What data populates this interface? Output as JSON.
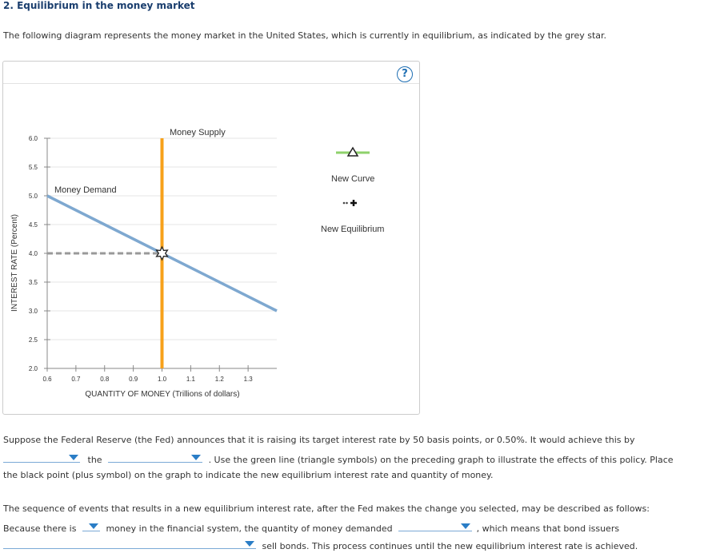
{
  "title": "2. Equilibrium in the money market",
  "intro": "The following diagram represents the money market in the United States, which is currently in equilibrium, as indicated by the grey star.",
  "help_label": "?",
  "chart": {
    "supply_label": "Money Supply",
    "demand_label": "Money Demand",
    "ylabel": "INTEREST RATE (Percent)",
    "xlabel": "QUANTITY OF MONEY (Trillions of dollars)",
    "yticks": [
      "6.0",
      "5.5",
      "5.0",
      "4.5",
      "4.0",
      "3.5",
      "3.0",
      "2.5",
      "2.0"
    ],
    "xticks": [
      "0.6",
      "0.7",
      "0.8",
      "0.9",
      "1.0",
      "1.1",
      "1.2",
      "1.3"
    ]
  },
  "chart_data": {
    "type": "line",
    "title": "",
    "xlabel": "QUANTITY OF MONEY (Trillions of dollars)",
    "ylabel": "INTEREST RATE (Percent)",
    "xlim": [
      0.6,
      1.4
    ],
    "ylim": [
      2.0,
      6.0
    ],
    "series": [
      {
        "name": "Money Supply",
        "color": "#f7a11a",
        "x": [
          1.0,
          1.0
        ],
        "y": [
          2.0,
          6.0
        ]
      },
      {
        "name": "Money Demand",
        "color": "#7ea8d0",
        "x": [
          0.6,
          1.4
        ],
        "y": [
          5.0,
          3.0
        ]
      }
    ],
    "equilibrium": {
      "x": 1.0,
      "y": 4.0,
      "marker": "grey star"
    }
  },
  "legend": {
    "new_curve": "New Curve",
    "new_equilibrium": "New Equilibrium"
  },
  "q1": {
    "line1_a": "Suppose the Federal Reserve (the Fed) announces that it is raising its target interest rate by 50 basis points, or 0.50%. It would achieve this by",
    "line2_the": "the",
    "line2_rest": ". Use the green line (triangle symbols) on the preceding graph to illustrate the effects of this policy. Place",
    "line3": "the black point (plus symbol) on the graph to indicate the new equilibrium interest rate and quantity of money."
  },
  "q2": {
    "line1": "The sequence of events that results in a new equilibrium interest rate, after the Fed makes the change you selected, may be described as follows:",
    "line2_a": "Because there is",
    "line2_b": "money in the financial system, the quantity of money demanded",
    "line2_c": ", which means that bond issuers",
    "line3": "sell bonds. This process continues until the new equilibrium interest rate is achieved."
  }
}
